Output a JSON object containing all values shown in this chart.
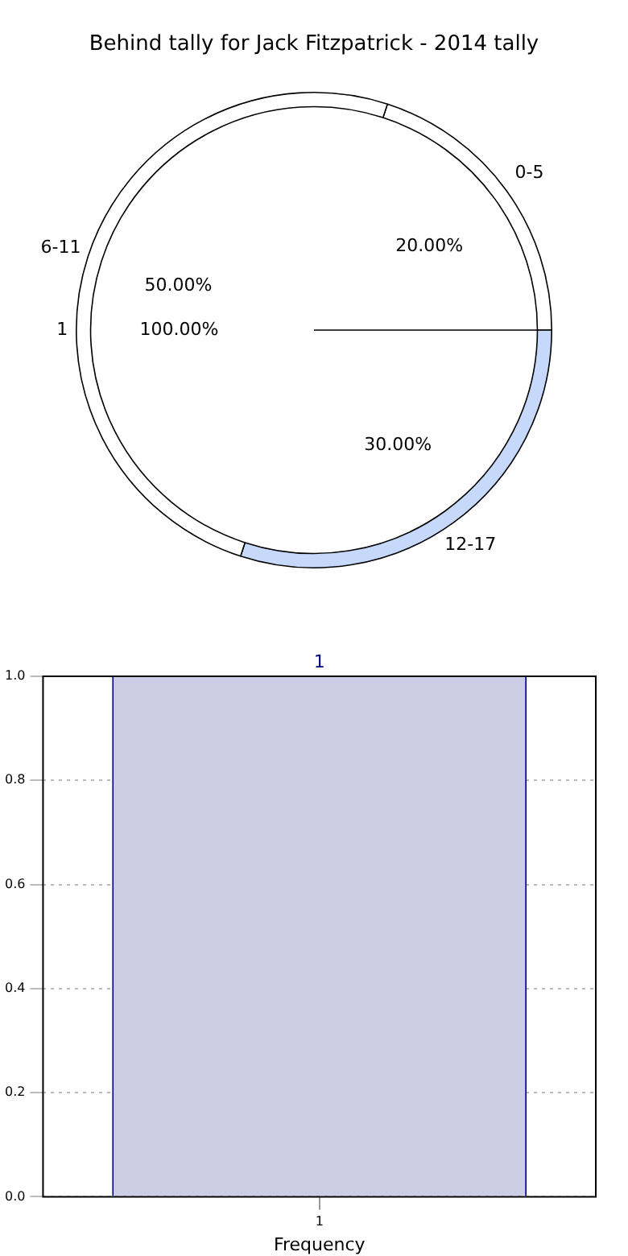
{
  "chart_data": [
    {
      "type": "donut",
      "title": "Behind tally for Jack Fitzpatrick - 2014 tally",
      "categories": [
        "0-5",
        "12-17",
        "6-11"
      ],
      "values": [
        20,
        30,
        50
      ],
      "colors": [
        "#ffffff",
        "#c6d9fb",
        "#ffffff"
      ],
      "value_labels": [
        "20.00%",
        "30.00%",
        "50.00%"
      ],
      "legend": false
    },
    {
      "type": "pie",
      "categories": [
        "1"
      ],
      "values": [
        100
      ],
      "colors": [
        "#ffffff"
      ],
      "value_labels": [
        "100.00%"
      ],
      "legend": false
    },
    {
      "type": "bar",
      "categories": [
        "1"
      ],
      "values": [
        1
      ],
      "color": "#cccce4",
      "xlabel": "Frequency",
      "ylim": [
        0,
        1
      ],
      "yticks": [
        {
          "value": 0,
          "label": "0.0"
        },
        0.2,
        0.4,
        0.6,
        0.8,
        {
          "value": 1,
          "label": "1.0"
        }
      ],
      "grid": true,
      "data_labels": true,
      "legend": false
    }
  ]
}
